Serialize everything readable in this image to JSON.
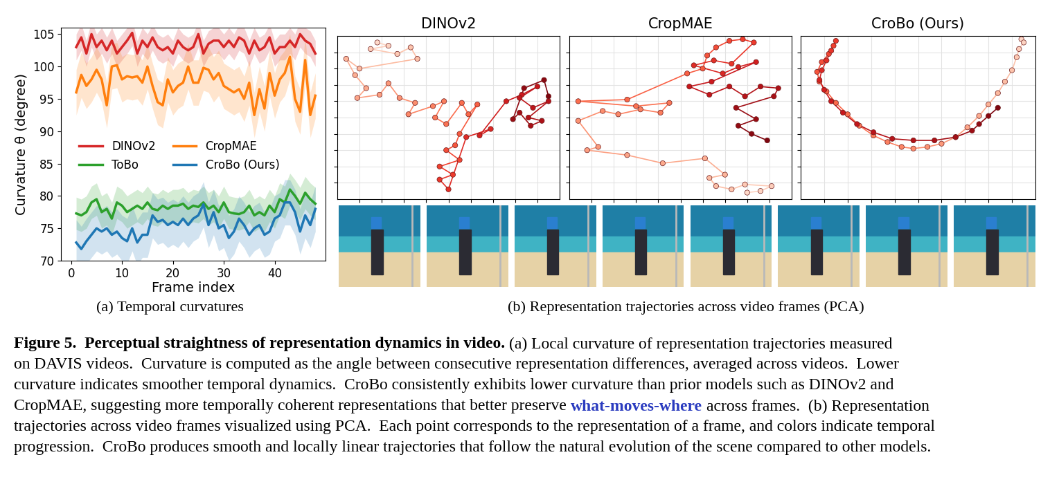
{
  "chart_data": [
    {
      "type": "line",
      "xlabel": "Frame index",
      "ylabel": "Curvature θ (degree)",
      "x": [
        1,
        2,
        3,
        4,
        5,
        6,
        7,
        8,
        9,
        10,
        11,
        12,
        13,
        14,
        15,
        16,
        17,
        18,
        19,
        20,
        21,
        22,
        23,
        24,
        25,
        26,
        27,
        28,
        29,
        30,
        31,
        32,
        33,
        34,
        35,
        36,
        37,
        38,
        39,
        40,
        41,
        42,
        43,
        44,
        45,
        46,
        47,
        48
      ],
      "xlim": [
        -2,
        50
      ],
      "xticks": [
        0,
        10,
        20,
        30,
        40
      ],
      "ylim": [
        70,
        106
      ],
      "yticks": [
        70,
        75,
        80,
        85,
        90,
        95,
        100,
        105
      ],
      "grid": false,
      "legend": "center left",
      "series": [
        {
          "name": "DINOv2",
          "color": "#d62728",
          "std": 2,
          "values": [
            103,
            104.5,
            102,
            105,
            103,
            104,
            102.5,
            104,
            102,
            103,
            104,
            105.2,
            102,
            104,
            103,
            104.5,
            103,
            102.5,
            103,
            102,
            104,
            103,
            102.5,
            103,
            105,
            102,
            103.5,
            104,
            104,
            103,
            104,
            103,
            104.5,
            104,
            102,
            104,
            102.5,
            103,
            104.5,
            102,
            103,
            103,
            104,
            103,
            105,
            104,
            103.5,
            102
          ]
        },
        {
          "name": "CropMAE",
          "color": "#ff7f0e",
          "std": 3.5,
          "values": [
            96,
            98.7,
            97,
            98,
            99.5,
            98,
            94,
            100,
            100.2,
            98,
            98.5,
            98.3,
            98.5,
            97.5,
            100,
            97,
            94.5,
            94,
            98,
            96,
            97,
            97.5,
            100,
            97.5,
            97.5,
            99.8,
            99.5,
            98,
            99,
            97,
            96.5,
            96,
            96.5,
            95,
            97.5,
            92.5,
            96.5,
            93.5,
            99,
            95.5,
            98,
            99,
            101.5,
            95,
            93,
            101,
            92.5,
            95.5
          ]
        },
        {
          "name": "ToBo",
          "color": "#2ca02c",
          "std": 2.5,
          "values": [
            77.3,
            77,
            77.5,
            79,
            79.5,
            77.5,
            78,
            76.5,
            79,
            78.5,
            77.5,
            78,
            78.5,
            78,
            79,
            78,
            77.8,
            78.5,
            78,
            78.5,
            78.5,
            78.8,
            78,
            78.5,
            78.3,
            79,
            78,
            78.5,
            77.5,
            79,
            77.5,
            77.3,
            77.2,
            77.5,
            78.5,
            77,
            77.5,
            77,
            78.5,
            77.5,
            79.5,
            79,
            81,
            80,
            78.8,
            80.5,
            79.5,
            78.8
          ]
        },
        {
          "name": "CroBo (Ours)",
          "color": "#1f77b4",
          "std": 3.5,
          "values": [
            72.8,
            71.8,
            73,
            74,
            75,
            74.5,
            75,
            74,
            74.5,
            73.5,
            73,
            75,
            72.8,
            74,
            74,
            77,
            76,
            76.3,
            75.5,
            76,
            75.5,
            76.5,
            75.5,
            76.5,
            77,
            78.7,
            75.5,
            77.5,
            75,
            75.5,
            73.5,
            74.5,
            76.5,
            75.5,
            74,
            75,
            75.5,
            74,
            74.5,
            76.5,
            77,
            79,
            79,
            77.5,
            74.5,
            77,
            75.5,
            78
          ]
        }
      ]
    },
    {
      "type": "scatter",
      "title": "DINOv2",
      "marker": "o",
      "line_style": "solid",
      "grid": true,
      "tick_labels": false,
      "xlim": [
        0,
        10
      ],
      "xticks": [
        1,
        2,
        3,
        4,
        5,
        6,
        7,
        8,
        9
      ],
      "ylim": [
        0,
        10
      ],
      "yticks": [
        1,
        2,
        3,
        4,
        5,
        6,
        7,
        8,
        9
      ],
      "x": [
        1.8,
        2.3,
        1.5,
        2.7,
        3.3,
        3.6,
        1.0,
        0.4,
        0.8,
        1.3,
        0.9,
        1.9,
        2.3,
        2.8,
        3.5,
        3.2,
        4.3,
        4.8,
        4.4,
        4.9,
        5.6,
        5.9,
        6.3,
        5.5,
        5.3,
        4.9,
        5.5,
        4.6,
        5.2,
        4.6,
        5.0,
        5.8,
        6.9,
        6.4,
        7.6,
        8.3,
        9.0,
        8.2,
        8.8,
        9.5,
        8.6,
        9.2,
        8.7,
        8.2,
        7.9,
        8.4,
        9.3,
        9.5
      ],
      "values": [
        9.6,
        9.4,
        9.2,
        8.9,
        9.3,
        8.6,
        8.0,
        8.6,
        7.6,
        6.8,
        6.2,
        6.4,
        7.1,
        6.2,
        5.9,
        5.2,
        5.7,
        6.0,
        5.0,
        4.6,
        5.9,
        5.2,
        5.8,
        4.0,
        3.3,
        3.0,
        2.4,
        2.0,
        1.5,
        1.2,
        0.6,
        3.8,
        4.3,
        3.9,
        6.0,
        6.4,
        6.9,
        6.2,
        5.6,
        6.0,
        5.0,
        4.8,
        4.5,
        5.3,
        4.9,
        6.8,
        7.3,
        6.3
      ]
    },
    {
      "type": "scatter",
      "title": "CropMAE",
      "marker": "o",
      "line_style": "solid",
      "grid": true,
      "tick_labels": false,
      "xlim": [
        0,
        10
      ],
      "xticks": [
        1,
        2,
        3,
        4,
        5,
        6,
        7,
        8,
        9
      ],
      "ylim": [
        0,
        10
      ],
      "yticks": [
        1,
        2,
        3,
        4,
        5,
        6,
        7,
        8,
        9
      ],
      "x": [
        8.0,
        8.6,
        9.1,
        7.9,
        7.3,
        6.6,
        6.3,
        7.0,
        6.1,
        4.2,
        2.6,
        0.8,
        1.3,
        0.4,
        1.5,
        2.2,
        3.2,
        4.1,
        4.5,
        3.0,
        0.4,
        2.6,
        5.3,
        6.0,
        6.2,
        6.6,
        7.2,
        7.8,
        8.3,
        7.3,
        6.5,
        5.6,
        6.9,
        7.6,
        8.4,
        6.4,
        5.4,
        6.3,
        7.2,
        7.9,
        8.6,
        9.4,
        9.2,
        7.5,
        8.4,
        7.6,
        8.2,
        8.9
      ],
      "values": [
        0.4,
        0.5,
        0.8,
        0.9,
        0.6,
        0.8,
        1.3,
        1.5,
        2.5,
        2.2,
        2.7,
        3.0,
        3.2,
        4.8,
        5.4,
        5.2,
        5.5,
        5.3,
        5.9,
        5.7,
        6.0,
        6.1,
        7.7,
        8.0,
        8.8,
        9.3,
        9.7,
        9.8,
        9.6,
        8.3,
        8.5,
        8.2,
        7.7,
        8.1,
        8.4,
        7.2,
        6.9,
        6.4,
        6.9,
        6.3,
        6.9,
        6.8,
        6.3,
        5.6,
        4.9,
        4.5,
        4.0,
        3.6
      ]
    },
    {
      "type": "scatter",
      "title": "CroBo (Ours)",
      "marker": "o",
      "line_style": "solid",
      "grid": true,
      "tick_labels": false,
      "xlim": [
        0,
        10
      ],
      "xticks": [
        1,
        2,
        3,
        4,
        5,
        6,
        7,
        8,
        9
      ],
      "ylim": [
        0,
        10
      ],
      "yticks": [
        1,
        2,
        3,
        4,
        5,
        6,
        7,
        8,
        9
      ],
      "x": [
        9.4,
        9.5,
        9.3,
        9.2,
        9.0,
        8.7,
        8.4,
        8.0,
        7.6,
        7.1,
        6.6,
        6.0,
        5.4,
        4.8,
        4.3,
        3.7,
        3.1,
        2.5,
        2.0,
        1.5,
        1.1,
        0.8,
        0.7,
        0.9,
        1.2,
        1.4,
        1.5,
        1.3,
        1.1,
        0.9,
        0.8,
        1.0,
        1.3,
        1.8,
        2.4,
        3.1,
        3.9,
        4.8,
        5.7,
        6.6,
        7.3,
        7.6,
        8.0,
        8.4
      ],
      "values": [
        9.8,
        9.6,
        9.2,
        8.7,
        7.9,
        7.2,
        6.5,
        5.8,
        5.1,
        4.4,
        3.8,
        3.4,
        3.2,
        3.1,
        3.2,
        3.5,
        3.9,
        4.5,
        5.2,
        5.9,
        6.6,
        7.2,
        7.8,
        8.4,
        8.9,
        9.4,
        9.7,
        9.1,
        8.5,
        7.9,
        7.3,
        6.7,
        6.0,
        5.3,
        4.6,
        4.1,
        3.7,
        3.6,
        3.6,
        3.8,
        4.2,
        4.6,
        5.1,
        5.6
      ]
    }
  ],
  "panel_captions": [
    "(a) Temporal curvatures",
    "(b) Representation trajectories across video frames (PCA)"
  ],
  "caption": {
    "lines": [
      [
        {
          "text": "Figure 5.  Perceptual straightness of representation dynamics in video.",
          "style": "bold"
        },
        {
          "text": "(a) Local curvature of representation trajectories measured",
          "style": "normal"
        }
      ],
      [
        {
          "text": "on DAVIS videos.  Curvature is computed as the angle between consecutive representation differences, averaged across videos.  Lower",
          "style": "normal"
        }
      ],
      [
        {
          "text": "curvature indicates smoother temporal dynamics.  CroBo consistently exhibits lower curvature than prior models such as DINOv2 and",
          "style": "normal"
        }
      ],
      [
        {
          "text": "CropMAE, suggesting more temporally coherent representations that better preserve",
          "style": "normal"
        },
        {
          "text": "what-moves-where",
          "style": "link"
        },
        {
          "text": "across frames.  (b) Representation",
          "style": "normal"
        }
      ],
      [
        {
          "text": "trajectories across video frames visualized using PCA.  Each point corresponds to the representation of a frame, and colors indicate temporal",
          "style": "normal"
        }
      ],
      [
        {
          "text": "progression.  CroBo produces smooth and locally linear trajectories that follow the natural evolution of the scene compared to other models.",
          "style": "normal"
        }
      ]
    ]
  }
}
